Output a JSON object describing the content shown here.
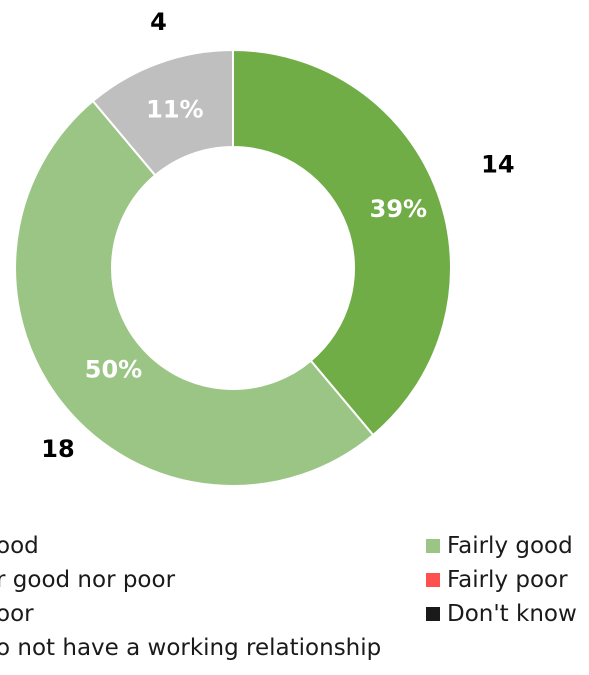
{
  "chart_data": {
    "type": "pie",
    "style": "donut",
    "slices": [
      {
        "label": "Very good",
        "count": 14,
        "percent": "39%",
        "color": "#70ad47"
      },
      {
        "label": "Fairly good",
        "count": 18,
        "percent": "50%",
        "color": "#9bc585"
      },
      {
        "label": "Neither good nor poor",
        "count": 4,
        "percent": "11%",
        "color": "#bfbfbf"
      }
    ],
    "legend": [
      {
        "label": "Very good",
        "display": "ood",
        "color": "#70ad47"
      },
      {
        "label": "Fairly good",
        "display": "Fairly good",
        "color": "#9bc585"
      },
      {
        "label": "Neither good nor poor",
        "display": "r good nor poor",
        "color": "#bfbfbf"
      },
      {
        "label": "Fairly poor",
        "display": "Fairly poor",
        "color": "#ff5050"
      },
      {
        "label": "Very poor",
        "display": "oor",
        "color": "#c00000"
      },
      {
        "label": "Don't know",
        "display": "Don't know",
        "color": "#1a1a1a"
      },
      {
        "label": "We do not have a working relationship",
        "display": "o not have a working relationship",
        "color": "#7f7f7f"
      }
    ],
    "legend_placement": "bottom"
  }
}
